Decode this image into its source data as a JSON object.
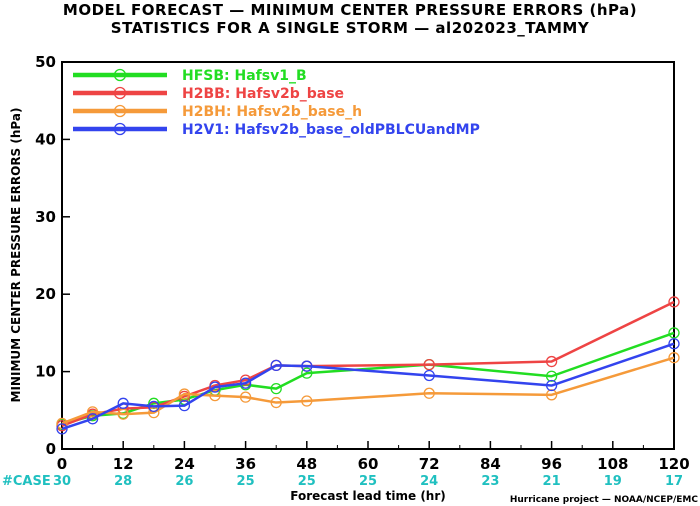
{
  "chart_data": {
    "type": "line",
    "title": "MODEL FORECAST — MINIMUM CENTER PRESSURE ERRORS (hPa)",
    "subtitle": "STATISTICS FOR A SINGLE STORM — al202023_TAMMY",
    "xlabel": "Forecast lead time (hr)",
    "ylabel": "MINIMUM CENTER PRESSURE ERRORS (hPa)",
    "xlim": [
      0,
      120
    ],
    "ylim": [
      0,
      50
    ],
    "xticks": [
      0,
      12,
      24,
      36,
      48,
      60,
      72,
      84,
      96,
      108,
      120
    ],
    "yticks": [
      0,
      10,
      20,
      30,
      40,
      50
    ],
    "case_label": "#CASE",
    "case_color": "#20c0c0",
    "case_counts": [
      30,
      28,
      26,
      25,
      25,
      25,
      24,
      23,
      21,
      19,
      17
    ],
    "credit": "Hurricane project — NOAA/NCEP/EMC",
    "legend_position": "top-left",
    "grid": false,
    "series": [
      {
        "name": "HFSB: Hafsv1_B",
        "color": "#22dd22",
        "x": [
          0,
          6,
          12,
          18,
          24,
          30,
          36,
          42,
          48,
          72,
          96,
          120
        ],
        "y": [
          3.2,
          4.3,
          4.6,
          5.9,
          6.4,
          7.6,
          8.3,
          7.8,
          9.8,
          10.9,
          9.4,
          15.0
        ]
      },
      {
        "name": "H2BB: Hafsv2b_base",
        "color": "#ee4444",
        "x": [
          0,
          6,
          12,
          18,
          24,
          30,
          36,
          42,
          48,
          72,
          96,
          120
        ],
        "y": [
          3.0,
          4.5,
          5.2,
          5.4,
          6.8,
          8.2,
          8.9,
          10.8,
          10.7,
          10.9,
          11.3,
          19.0
        ]
      },
      {
        "name": "H2BH: Hafsv2b_base_h",
        "color": "#f59a3a",
        "x": [
          0,
          6,
          12,
          18,
          24,
          30,
          36,
          42,
          48,
          72,
          96,
          120
        ],
        "y": [
          3.3,
          4.8,
          4.5,
          4.7,
          7.1,
          6.9,
          6.7,
          6.0,
          6.2,
          7.2,
          7.0,
          11.8
        ]
      },
      {
        "name": "H2V1: Hafsv2b_base_oldPBLCUandMP",
        "color": "#3344ee",
        "x": [
          0,
          6,
          12,
          18,
          24,
          30,
          36,
          42,
          48,
          72,
          96,
          120
        ],
        "y": [
          2.6,
          3.9,
          5.9,
          5.5,
          5.6,
          8.0,
          8.5,
          10.8,
          10.7,
          9.5,
          8.2,
          13.6
        ]
      }
    ]
  }
}
